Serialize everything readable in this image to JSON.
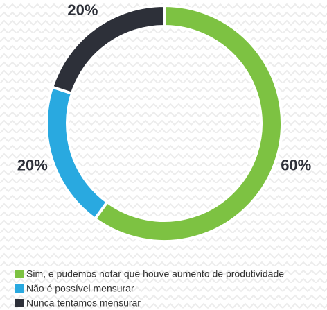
{
  "chart_data": {
    "type": "pie",
    "categories": [
      "Sim, e pudemos notar que houve aumento de produtividade",
      "Não é possível mensurar",
      "Nunca tentamos mensurar"
    ],
    "values": [
      60,
      20,
      20
    ],
    "value_labels": [
      "60%",
      "20%",
      "20%"
    ],
    "colors": [
      "#7dc242",
      "#29a9e0",
      "#2d3039"
    ],
    "donut": true,
    "legend": "bottom"
  }
}
